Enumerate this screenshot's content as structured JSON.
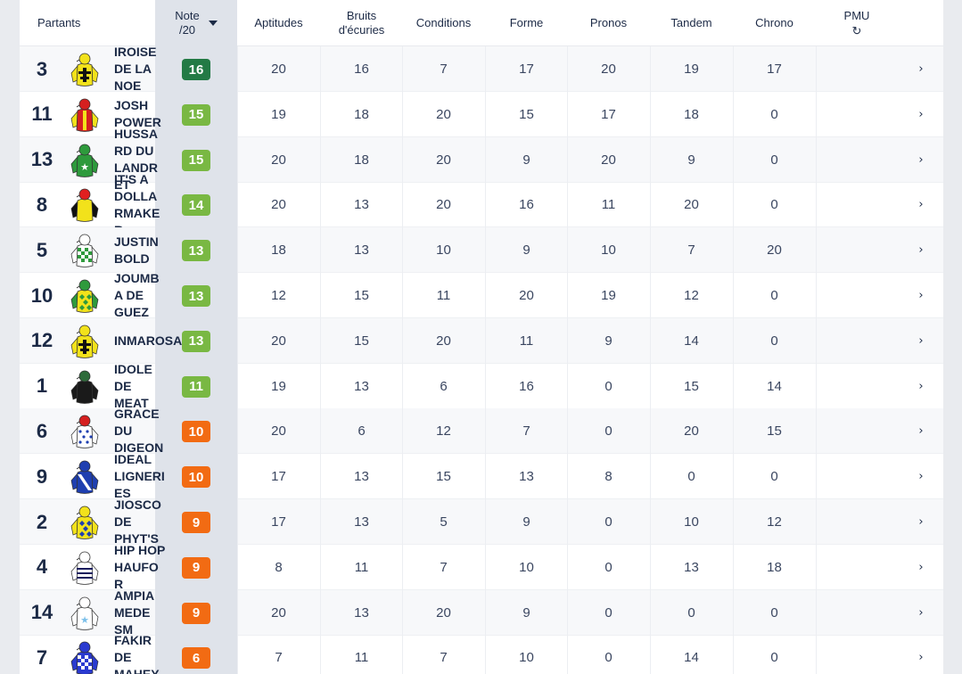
{
  "colors": {
    "dark_green": "#237a45",
    "green": "#79b843",
    "orange": "#f26b13",
    "note_column": "#dfe3ea"
  },
  "header": {
    "partants": "Partants",
    "note_line1": "Note",
    "note_line2": "/20",
    "columns": [
      "Aptitudes",
      "Bruits d'écuries",
      "Conditions",
      "Forme",
      "Pronos",
      "Tandem",
      "Chrono"
    ],
    "pmu": "PMU",
    "pmu_icon": "refresh-icon",
    "sort_icon": "caret-down-icon"
  },
  "rows": [
    {
      "num": "3",
      "name": "IROISE DE LA NOE",
      "note": "16",
      "note_color": "dark_green",
      "silk": "yellow-black-cross",
      "scores": [
        "20",
        "16",
        "7",
        "17",
        "20",
        "19",
        "17"
      ]
    },
    {
      "num": "11",
      "name": "JOSH POWER",
      "note": "15",
      "note_color": "green",
      "silk": "red-yellow-stripes",
      "scores": [
        "19",
        "18",
        "20",
        "15",
        "17",
        "18",
        "0"
      ]
    },
    {
      "num": "13",
      "name": "HUSSARD DU LANDRET",
      "note": "15",
      "note_color": "green",
      "silk": "green-white-star",
      "scores": [
        "20",
        "18",
        "20",
        "9",
        "20",
        "9",
        "0"
      ]
    },
    {
      "num": "8",
      "name": "IT'S A DOLLARMAKER",
      "note": "14",
      "note_color": "green",
      "silk": "yellow-red-cap",
      "scores": [
        "20",
        "13",
        "20",
        "16",
        "11",
        "20",
        "0"
      ]
    },
    {
      "num": "5",
      "name": "JUSTIN BOLD",
      "note": "13",
      "note_color": "green",
      "silk": "green-white-check",
      "scores": [
        "18",
        "13",
        "10",
        "9",
        "10",
        "7",
        "20"
      ]
    },
    {
      "num": "10",
      "name": "JOUMBA DE GUEZ",
      "note": "13",
      "note_color": "green",
      "silk": "green-yellow-diamond",
      "scores": [
        "12",
        "15",
        "11",
        "20",
        "19",
        "12",
        "0"
      ]
    },
    {
      "num": "12",
      "name": "INMAROSA",
      "note": "13",
      "note_color": "green",
      "silk": "yellow-black-cross",
      "scores": [
        "20",
        "15",
        "20",
        "11",
        "9",
        "14",
        "0"
      ]
    },
    {
      "num": "1",
      "name": "IDOLE DE MEAT",
      "note": "11",
      "note_color": "green",
      "silk": "black",
      "scores": [
        "19",
        "13",
        "6",
        "16",
        "0",
        "15",
        "14"
      ]
    },
    {
      "num": "6",
      "name": "GRACE DU DIGEON",
      "note": "10",
      "note_color": "orange",
      "silk": "white-blue-dots",
      "scores": [
        "20",
        "6",
        "12",
        "7",
        "0",
        "20",
        "15"
      ]
    },
    {
      "num": "9",
      "name": "IDEAL LIGNERIES",
      "note": "10",
      "note_color": "orange",
      "silk": "blue-white-sash",
      "scores": [
        "17",
        "13",
        "15",
        "13",
        "8",
        "0",
        "0"
      ]
    },
    {
      "num": "2",
      "name": "JIOSCO DE PHYT'S",
      "note": "9",
      "note_color": "orange",
      "silk": "yellow-blue-diamond",
      "scores": [
        "17",
        "13",
        "5",
        "9",
        "0",
        "10",
        "12"
      ]
    },
    {
      "num": "4",
      "name": "HIP HOP HAUFOR",
      "note": "9",
      "note_color": "orange",
      "silk": "white-navy-stripes",
      "scores": [
        "8",
        "11",
        "7",
        "10",
        "0",
        "13",
        "18"
      ]
    },
    {
      "num": "14",
      "name": "AMPIA MEDE SM",
      "note": "9",
      "note_color": "orange",
      "silk": "white-lightblue-star",
      "scores": [
        "20",
        "13",
        "20",
        "9",
        "0",
        "0",
        "0"
      ]
    },
    {
      "num": "7",
      "name": "FAKIR DE MAHEY",
      "note": "6",
      "note_color": "orange",
      "silk": "blue-white-check",
      "scores": [
        "7",
        "11",
        "7",
        "10",
        "0",
        "14",
        "0"
      ]
    }
  ]
}
